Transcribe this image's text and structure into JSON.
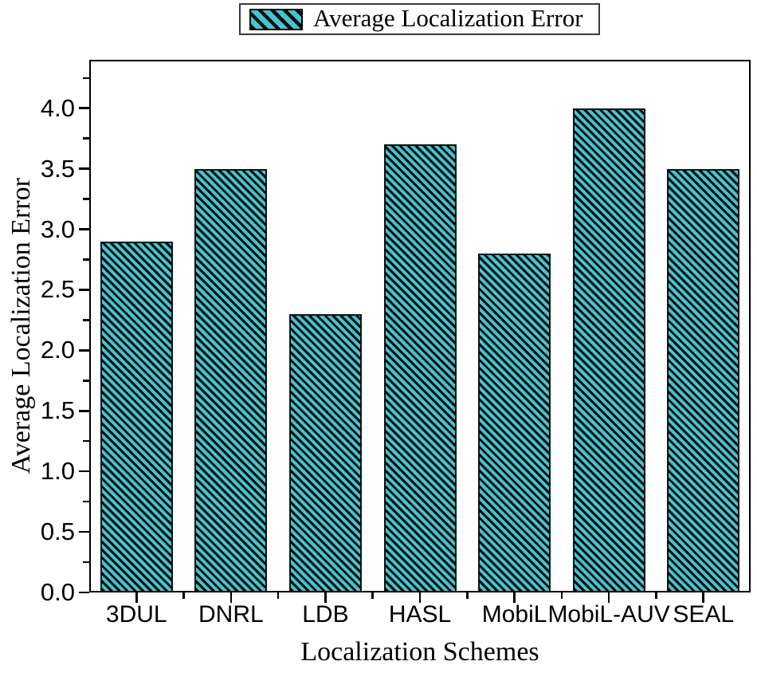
{
  "legend": {
    "swatch": "hatched-teal-swatch",
    "label": "Average Localization Error"
  },
  "chart_data": {
    "type": "bar",
    "title": "",
    "categories": [
      "3DUL",
      "DNRL",
      "LDB",
      "HASL",
      "MobiL",
      "MobiL-AUV",
      "SEAL"
    ],
    "values": [
      2.9,
      3.5,
      2.3,
      3.7,
      2.8,
      4.0,
      3.5
    ],
    "series_label": "Average Localization Error",
    "xlabel": "Localization Schemes",
    "ylabel": "Average Localization Error",
    "ylim": [
      0,
      4.4
    ],
    "yticks": {
      "major_step": 0.5,
      "minor_step": 0.25,
      "labels": [
        "0.0",
        "0.5",
        "1.0",
        "1.5",
        "2.0",
        "2.5",
        "3.0",
        "3.5",
        "4.0"
      ]
    },
    "legend_position": "top-center",
    "grid": false,
    "bar_style": "diagonal-hatch",
    "colors": {
      "bar_fill": "#41c6d1",
      "hatch_line": "#0b0b0b",
      "frame": "#000000",
      "text": "#000000",
      "legend_border": "#3a3a3a"
    }
  }
}
